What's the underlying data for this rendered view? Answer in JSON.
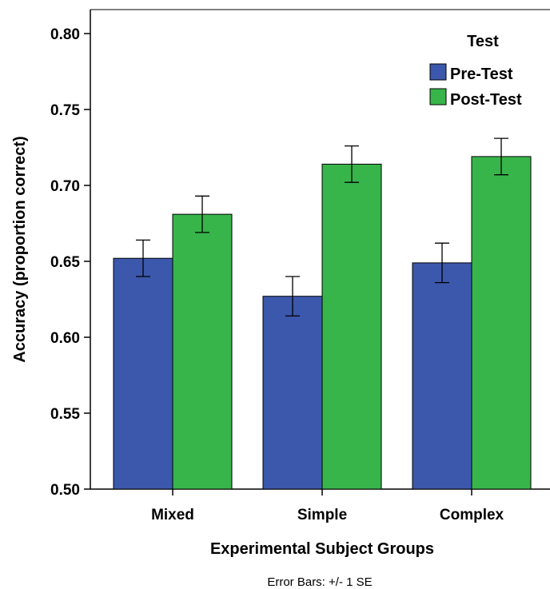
{
  "chart_data": {
    "type": "bar",
    "categories": [
      "Mixed",
      "Simple",
      "Complex"
    ],
    "series": [
      {
        "name": "Pre-Test",
        "color": "#3c58ac",
        "values": [
          0.652,
          0.627,
          0.649
        ],
        "se": [
          0.012,
          0.013,
          0.013
        ]
      },
      {
        "name": "Post-Test",
        "color": "#38b54a",
        "values": [
          0.681,
          0.714,
          0.719
        ],
        "se": [
          0.012,
          0.012,
          0.012
        ]
      }
    ],
    "xlabel": "Experimental Subject Groups",
    "ylabel": "Accuracy (proportion correct)",
    "ylim": [
      0.5,
      0.8
    ],
    "yticks": [
      "0.50",
      "0.55",
      "0.60",
      "0.65",
      "0.70",
      "0.75",
      "0.80"
    ],
    "legend_title": "Test",
    "legend_position": "top-right",
    "grid": false,
    "note": "Error Bars: +/- 1 SE"
  }
}
